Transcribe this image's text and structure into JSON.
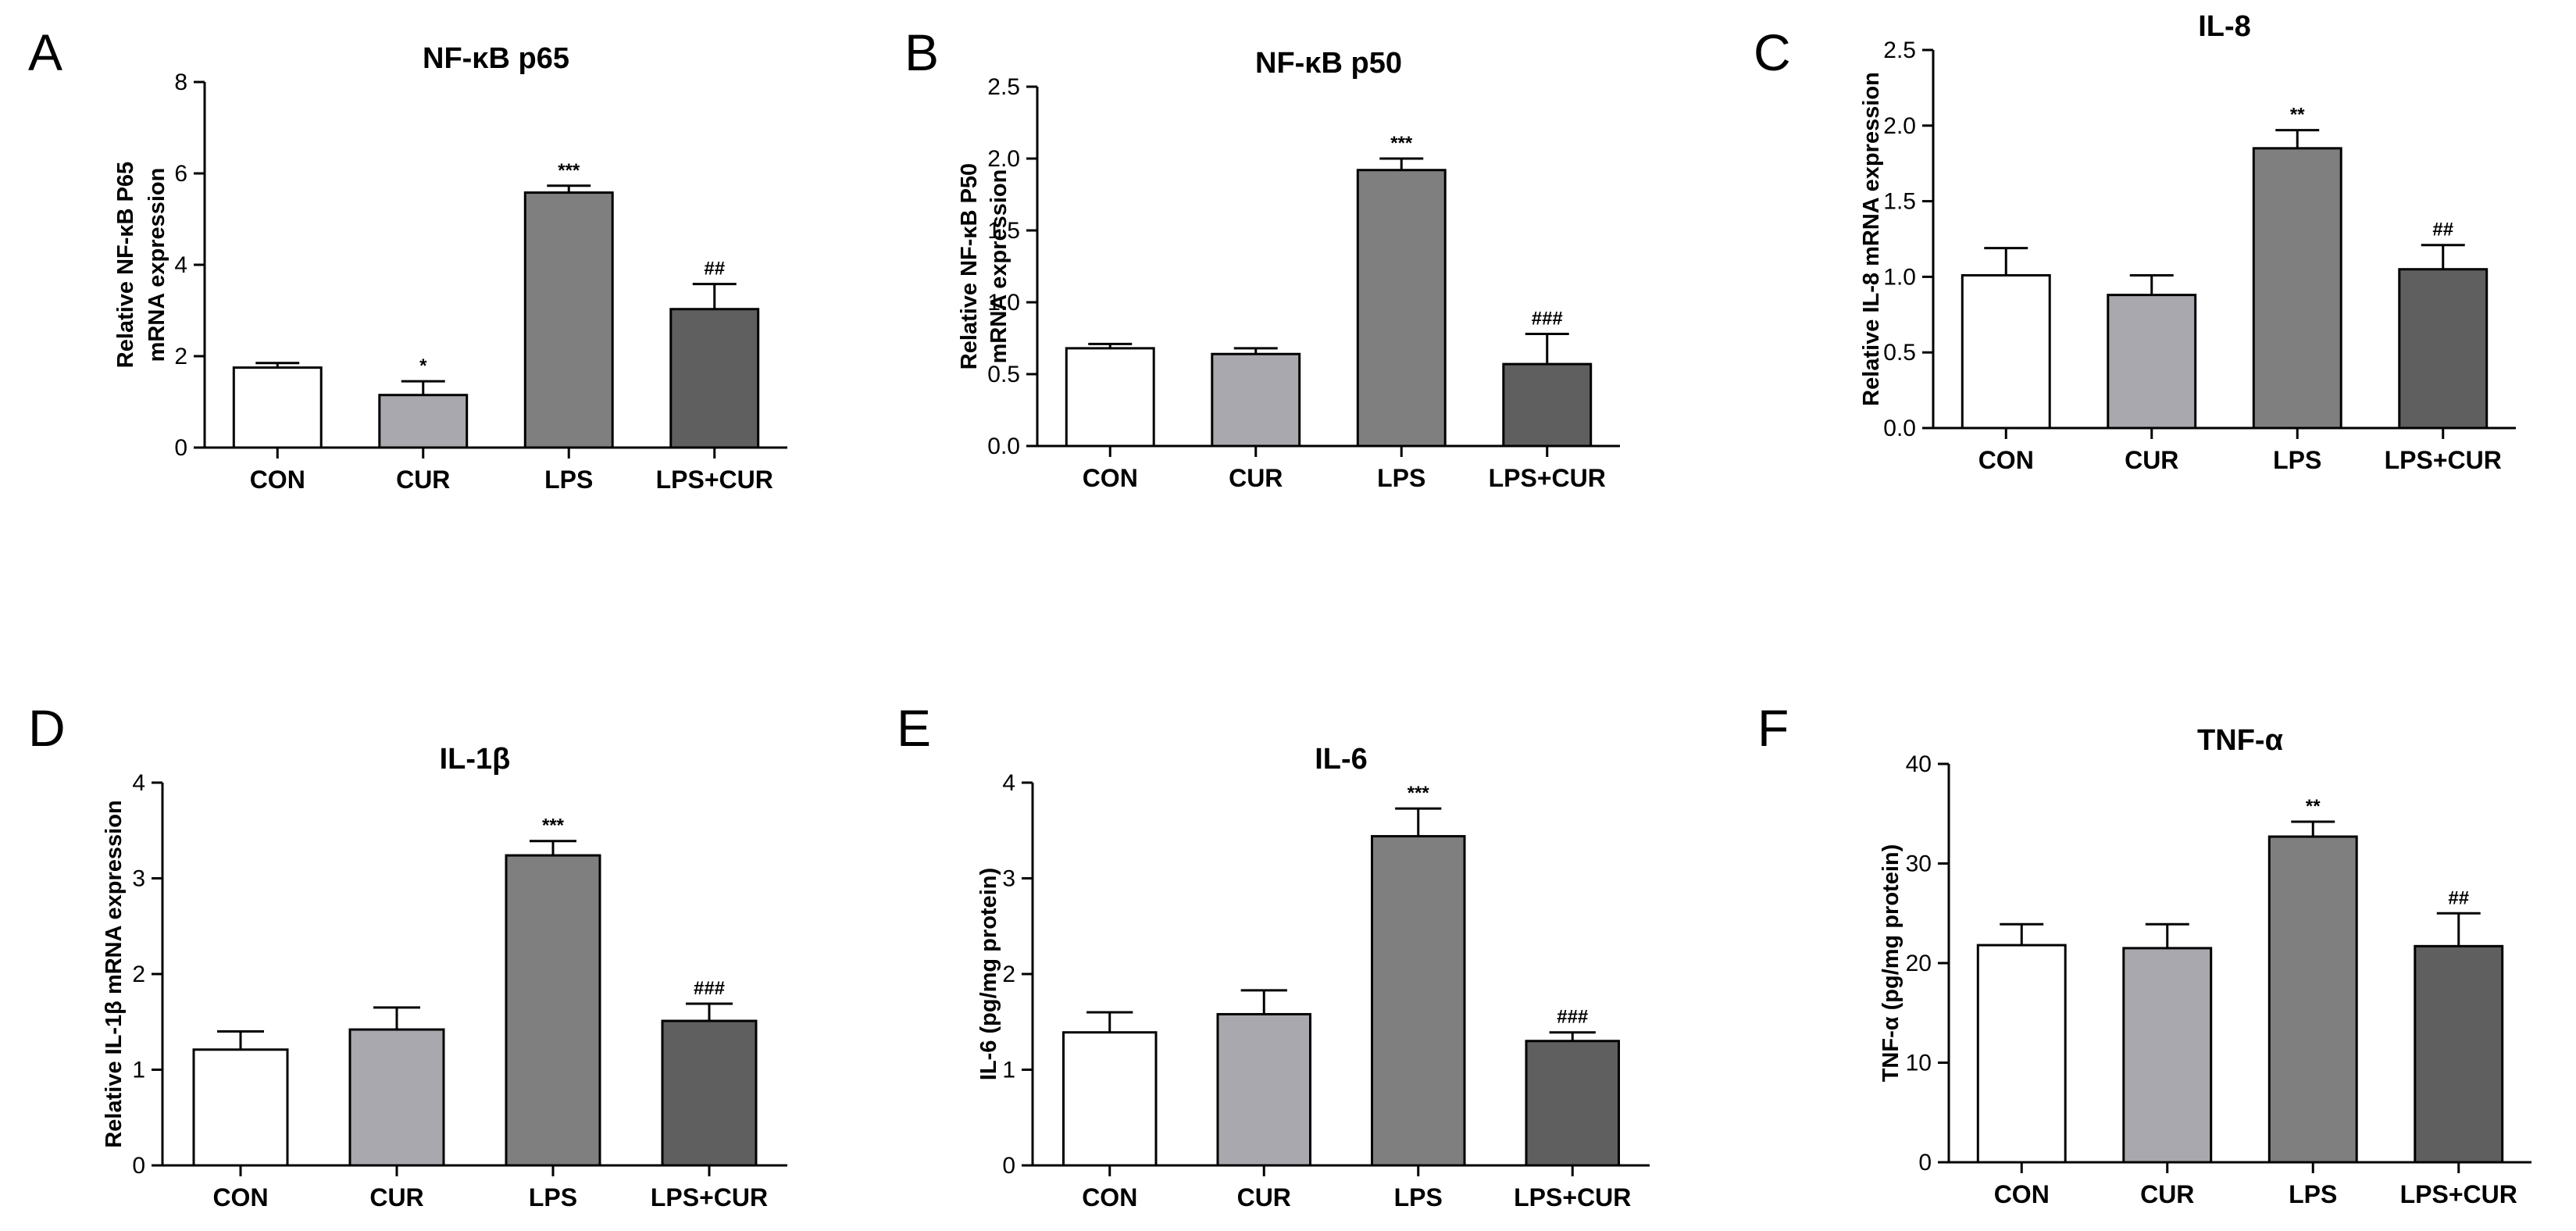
{
  "chart_data": [
    {
      "panel": "A",
      "type": "bar",
      "title": "NF-κB p65",
      "ylabel": [
        "Relative NF-κB P65",
        "mRNA expression"
      ],
      "categories": [
        "CON",
        "CUR",
        "LPS",
        "LPS+CUR"
      ],
      "values": [
        1.75,
        1.15,
        5.58,
        3.03
      ],
      "errors": [
        0.1,
        0.3,
        0.15,
        0.55
      ],
      "annotations": [
        "",
        "*",
        "***",
        "##"
      ],
      "ylim": [
        0,
        8
      ],
      "yticks": [
        0,
        2,
        4,
        6,
        8
      ],
      "ytick_labels": [
        "0",
        "2",
        "4",
        "6",
        "8"
      ]
    },
    {
      "panel": "B",
      "type": "bar",
      "title": "NF-κB p50",
      "ylabel": [
        "Relative NF-κB P50",
        "mRNA expression"
      ],
      "categories": [
        "CON",
        "CUR",
        "LPS",
        "LPS+CUR"
      ],
      "values": [
        0.68,
        0.64,
        1.92,
        0.57
      ],
      "errors": [
        0.03,
        0.04,
        0.08,
        0.21
      ],
      "annotations": [
        "",
        "",
        "***",
        "###"
      ],
      "ylim": [
        0,
        2.5
      ],
      "yticks": [
        0,
        0.5,
        1,
        1.5,
        2,
        2.5
      ],
      "ytick_labels": [
        "0.0",
        "0.5",
        "1.0",
        "1.5",
        "2.0",
        "2.5"
      ]
    },
    {
      "panel": "C",
      "type": "bar",
      "title": "IL-8",
      "ylabel": [
        "Relative IL-8 mRNA expression"
      ],
      "categories": [
        "CON",
        "CUR",
        "LPS",
        "LPS+CUR"
      ],
      "values": [
        1.01,
        0.88,
        1.85,
        1.05
      ],
      "errors": [
        0.18,
        0.13,
        0.12,
        0.16
      ],
      "annotations": [
        "",
        "",
        "**",
        "##"
      ],
      "ylim": [
        0,
        2.5
      ],
      "yticks": [
        0,
        0.5,
        1,
        1.5,
        2,
        2.5
      ],
      "ytick_labels": [
        "0.0",
        "0.5",
        "1.0",
        "1.5",
        "2.0",
        "2.5"
      ]
    },
    {
      "panel": "D",
      "type": "bar",
      "title": "IL-1β",
      "ylabel": [
        "Relative IL-1β mRNA expression"
      ],
      "categories": [
        "CON",
        "CUR",
        "LPS",
        "LPS+CUR"
      ],
      "values": [
        1.21,
        1.42,
        3.24,
        1.51
      ],
      "errors": [
        0.19,
        0.23,
        0.15,
        0.18
      ],
      "annotations": [
        "",
        "",
        "***",
        "###"
      ],
      "ylim": [
        0,
        4
      ],
      "yticks": [
        0,
        1,
        2,
        3,
        4
      ],
      "ytick_labels": [
        "0",
        "1",
        "2",
        "3",
        "4"
      ]
    },
    {
      "panel": "E",
      "type": "bar",
      "title": "IL-6",
      "ylabel": [
        "IL-6 (pg/mg protein)"
      ],
      "categories": [
        "CON",
        "CUR",
        "LPS",
        "LPS+CUR"
      ],
      "values": [
        1.39,
        1.58,
        3.44,
        1.3
      ],
      "errors": [
        0.21,
        0.25,
        0.29,
        0.09
      ],
      "annotations": [
        "",
        "",
        "***",
        "###"
      ],
      "ylim": [
        0,
        4
      ],
      "yticks": [
        0,
        1,
        2,
        3,
        4
      ],
      "ytick_labels": [
        "0",
        "1",
        "2",
        "3",
        "4"
      ]
    },
    {
      "panel": "F",
      "type": "bar",
      "title": "TNF-α",
      "ylabel": [
        "TNF-α (pg/mg protein)"
      ],
      "categories": [
        "CON",
        "CUR",
        "LPS",
        "LPS+CUR"
      ],
      "values": [
        21.8,
        21.5,
        32.7,
        21.7
      ],
      "errors": [
        2.1,
        2.4,
        1.5,
        3.3
      ],
      "annotations": [
        "",
        "",
        "**",
        "##"
      ],
      "ylim": [
        0,
        40
      ],
      "yticks": [
        0,
        10,
        20,
        30,
        40
      ],
      "ytick_labels": [
        "0",
        "10",
        "20",
        "30",
        "40"
      ]
    }
  ],
  "colors": {
    "bars": [
      "#ffffff",
      "#a8a8ae",
      "#7f7f7f",
      "#5f5f5f"
    ],
    "stroke": "#000000"
  }
}
